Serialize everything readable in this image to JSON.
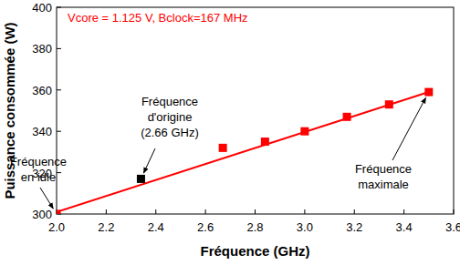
{
  "chart_data": {
    "type": "scatter",
    "title": "Vcore = 1.125 V, Bclock=167 MHz",
    "x_label": "Fréquence (GHz)",
    "y_label": "Puissance consommée (W)",
    "xlim": [
      2.0,
      3.6
    ],
    "ylim": [
      300,
      400
    ],
    "xticks": [
      {
        "value": 2.0,
        "label": "2.0"
      },
      {
        "value": 2.2,
        "label": "2.2"
      },
      {
        "value": 2.4,
        "label": "2.4"
      },
      {
        "value": 2.6,
        "label": "2.6"
      },
      {
        "value": 2.8,
        "label": "2.8"
      },
      {
        "value": 3.0,
        "label": "3.0"
      },
      {
        "value": 3.2,
        "label": "3.2"
      },
      {
        "value": 3.4,
        "label": "3.4"
      },
      {
        "value": 3.6,
        "label": "3.6"
      }
    ],
    "yticks": [
      300,
      320,
      340,
      360,
      380,
      400
    ],
    "grid": false,
    "series": [
      {
        "type": "scatter",
        "marker": "square",
        "x": [
          2.0,
          2.34,
          2.67,
          2.84,
          3.0,
          3.17,
          3.34,
          3.5
        ],
        "values": [
          300,
          317,
          332,
          335,
          340,
          347,
          353,
          359
        ],
        "colors": [
          "#ff0000",
          "#000000",
          "#ff0000",
          "#ff0000",
          "#ff0000",
          "#ff0000",
          "#ff0000",
          "#ff0000"
        ]
      },
      {
        "type": "line",
        "line_style": "solid",
        "color": "#ff0000",
        "x": [
          2.0,
          3.5
        ],
        "values": [
          301,
          359
        ]
      }
    ],
    "annotations": [
      {
        "text": [
          "Fréquence",
          "en idle"
        ],
        "x": 2.0,
        "y": 300
      },
      {
        "text": [
          "Fréquence",
          "d'origine",
          "(2.66 GHz)"
        ],
        "x": 2.34,
        "y": 317
      },
      {
        "text": [
          "Fréquence",
          "maximale"
        ],
        "x": 3.5,
        "y": 359
      }
    ]
  }
}
